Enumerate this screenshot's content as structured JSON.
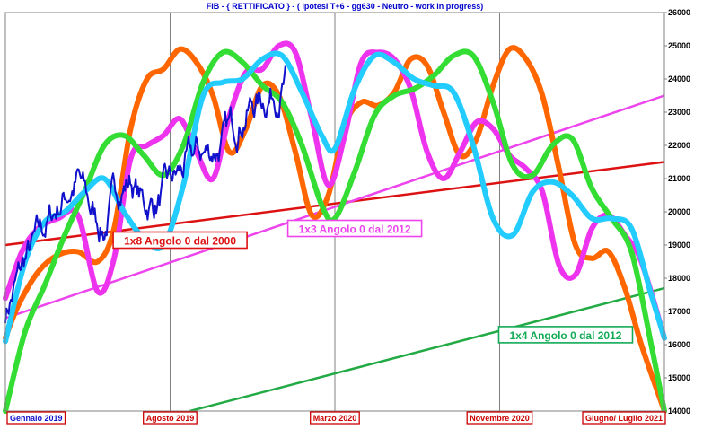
{
  "chart_data": {
    "type": "line",
    "title": "FIB  - { RETTIFICATO } - ( Ipotesi T+6 - gg630 - Neutro - work in progress)",
    "ylim": [
      14000,
      26000
    ],
    "yticks": [
      14000,
      15000,
      16000,
      17000,
      18000,
      19000,
      20000,
      21000,
      22000,
      23000,
      24000,
      25000,
      26000
    ],
    "xlim": [
      0,
      1
    ],
    "x_labels": [
      {
        "label": "Gennaio 2019",
        "x": 0.0
      },
      {
        "label": "Agosto  2019",
        "x": 0.25
      },
      {
        "label": "Marzo 2020",
        "x": 0.5
      },
      {
        "label": "Novembre 2020",
        "x": 0.75
      },
      {
        "label": "Giugno/ Luglio 2021",
        "x": 1.0
      }
    ],
    "grid": {
      "vertical_lines_at": [
        0.25,
        0.5,
        0.75
      ]
    },
    "series": [
      {
        "color": "#ff6600",
        "x": [
          0,
          0.02,
          0.05,
          0.08,
          0.11,
          0.14,
          0.165,
          0.19,
          0.215,
          0.24,
          0.265,
          0.29,
          0.315,
          0.34,
          0.365,
          0.39,
          0.415,
          0.44,
          0.465,
          0.49,
          0.515,
          0.54,
          0.565,
          0.59,
          0.615,
          0.64,
          0.665,
          0.69,
          0.715,
          0.74,
          0.765,
          0.79,
          0.815,
          0.84,
          0.865,
          0.89,
          0.915,
          0.94,
          0.965,
          1.0
        ],
        "y": [
          16200,
          17200,
          18200,
          18700,
          18800,
          18500,
          19500,
          22500,
          24000,
          24300,
          24900,
          24500,
          23500,
          21800,
          22500,
          23800,
          23500,
          21800,
          19900,
          20500,
          22600,
          23300,
          23200,
          23600,
          24600,
          24400,
          23000,
          21700,
          22200,
          23800,
          24900,
          24600,
          23500,
          21300,
          19000,
          18600,
          18800,
          17700,
          16000,
          14000
        ]
      },
      {
        "color": "#ee33ee",
        "x": [
          0,
          0.025,
          0.05,
          0.08,
          0.11,
          0.14,
          0.165,
          0.19,
          0.215,
          0.24,
          0.265,
          0.29,
          0.315,
          0.34,
          0.365,
          0.39,
          0.415,
          0.44,
          0.465,
          0.49,
          0.515,
          0.54,
          0.565,
          0.59,
          0.615,
          0.64,
          0.665,
          0.69,
          0.715,
          0.74,
          0.765,
          0.79,
          0.815,
          0.84,
          0.865,
          0.89,
          0.915,
          0.94,
          0.965,
          1.0
        ],
        "y": [
          17400,
          18800,
          19500,
          19800,
          19900,
          17600,
          18600,
          21600,
          22000,
          22300,
          22800,
          21800,
          21000,
          22900,
          24200,
          24300,
          25000,
          24800,
          22800,
          20800,
          22300,
          24500,
          24800,
          24600,
          23700,
          21800,
          21000,
          21800,
          22700,
          22500,
          21700,
          21300,
          20600,
          18400,
          18100,
          19500,
          19900,
          19300,
          18500,
          16200
        ]
      },
      {
        "color": "#33dd33",
        "x": [
          0,
          0.03,
          0.06,
          0.09,
          0.12,
          0.15,
          0.18,
          0.21,
          0.24,
          0.27,
          0.3,
          0.33,
          0.36,
          0.39,
          0.42,
          0.45,
          0.48,
          0.5,
          0.53,
          0.56,
          0.59,
          0.62,
          0.65,
          0.68,
          0.71,
          0.74,
          0.77,
          0.8,
          0.83,
          0.86,
          0.89,
          0.92,
          0.95,
          0.98,
          1.0
        ],
        "y": [
          14000,
          16400,
          17800,
          19300,
          20600,
          22000,
          22300,
          21700,
          21100,
          22000,
          23900,
          24800,
          24500,
          23800,
          23300,
          22000,
          20200,
          19800,
          21200,
          22900,
          23500,
          23700,
          24100,
          24700,
          24700,
          23300,
          21400,
          21100,
          22000,
          22200,
          20700,
          19800,
          18800,
          16000,
          14000
        ]
      },
      {
        "color": "#22ccff",
        "x": [
          0,
          0.03,
          0.06,
          0.09,
          0.12,
          0.15,
          0.18,
          0.21,
          0.24,
          0.27,
          0.3,
          0.33,
          0.36,
          0.39,
          0.42,
          0.45,
          0.48,
          0.5,
          0.53,
          0.56,
          0.59,
          0.62,
          0.65,
          0.68,
          0.71,
          0.74,
          0.77,
          0.8,
          0.83,
          0.86,
          0.89,
          0.92,
          0.95,
          0.98,
          1.0
        ],
        "y": [
          16100,
          18500,
          19700,
          20000,
          20600,
          21000,
          20000,
          19200,
          19000,
          20800,
          23500,
          23900,
          24000,
          24600,
          24700,
          23600,
          22300,
          21900,
          23700,
          24700,
          24500,
          24000,
          23800,
          23600,
          22000,
          19800,
          19300,
          20600,
          20900,
          20500,
          19800,
          19800,
          19500,
          17500,
          16200
        ]
      }
    ],
    "actual_series": {
      "color": "#1111cc",
      "x_start": 0.0,
      "x_end": 0.425,
      "y_start": 17000,
      "y_end": 23900,
      "anchors": [
        [
          0,
          17000
        ],
        [
          0.03,
          18500
        ],
        [
          0.06,
          19500
        ],
        [
          0.09,
          20500
        ],
        [
          0.11,
          21000
        ],
        [
          0.13,
          20000
        ],
        [
          0.15,
          19500
        ],
        [
          0.17,
          20700
        ],
        [
          0.19,
          21000
        ],
        [
          0.21,
          20200
        ],
        [
          0.23,
          20300
        ],
        [
          0.26,
          21000
        ],
        [
          0.29,
          21700
        ],
        [
          0.31,
          21800
        ],
        [
          0.33,
          22100
        ],
        [
          0.35,
          22700
        ],
        [
          0.37,
          23200
        ],
        [
          0.39,
          23400
        ],
        [
          0.41,
          23700
        ],
        [
          0.425,
          23900
        ]
      ]
    },
    "trend_lines": [
      {
        "color": "#dd1111",
        "label": "1x8 Angolo 0 dal 2000",
        "y_start": 19000,
        "y_end": 21500
      },
      {
        "color": "#ee44ee",
        "label": "1x3 Angolo 0 dal 2012",
        "y_start": 16800,
        "y_end": 23500
      },
      {
        "color": "#22aa44",
        "label": "1x4 Angolo 0 dal 2012",
        "x_start": 0.28,
        "y_start": 14000,
        "y_end": 17700
      }
    ]
  }
}
